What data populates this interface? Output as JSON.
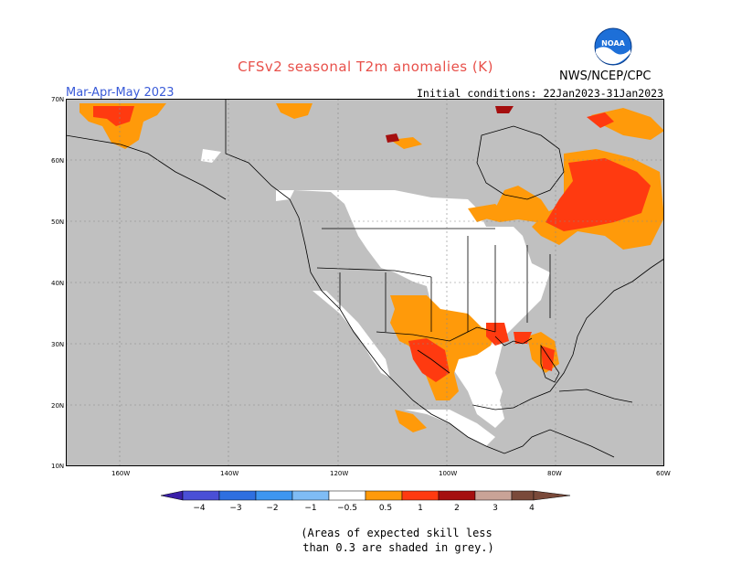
{
  "title": "CFSv2 seasonal T2m anomalies (K)",
  "season": "Mar-Apr-May 2023",
  "initial_conditions": "Initial conditions: 22Jan2023-31Jan2023",
  "agency": "NWS/NCEP/CPC",
  "logo_text": "NOAA",
  "lat_labels": [
    "70N",
    "60N",
    "50N",
    "40N",
    "30N",
    "20N",
    "10N"
  ],
  "lon_labels": [
    "160W",
    "140W",
    "120W",
    "100W",
    "80W",
    "60W"
  ],
  "colorbar": {
    "ticks": [
      "−4",
      "−3",
      "−2",
      "−1",
      "−0.5",
      "0.5",
      "1",
      "2",
      "3",
      "4"
    ],
    "colors": [
      "#3a1fa8",
      "#4a4fd6",
      "#2e6fe0",
      "#3d96f0",
      "#7fbcf5",
      "#ffffff",
      "#ff9a0a",
      "#ff3a10",
      "#a50f0f",
      "#c9a397",
      "#7a4a3a"
    ]
  },
  "skill_note_line1": "(Areas of expected skill less",
  "skill_note_line2": "than 0.3 are shaded in grey.)",
  "colors": {
    "low_skill_grey": "#c0c0c0",
    "anom_0_5_1": "#ff9a0a",
    "anom_1_2": "#ff3a10",
    "anom_2_3": "#a50f0f"
  }
}
